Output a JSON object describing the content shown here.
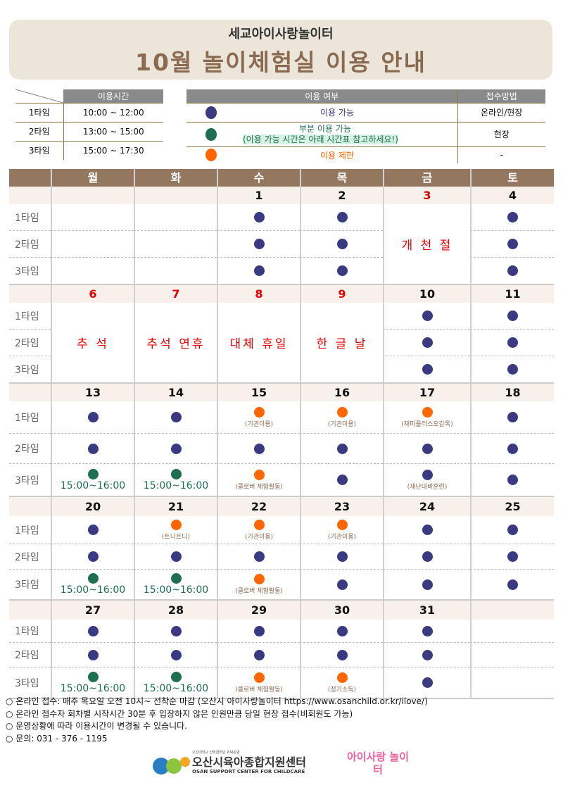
{
  "header": {
    "subtitle": "세교아이사랑놀이터",
    "title": "10월 놀이체험실 이용 안내"
  },
  "time_table": {
    "header": "이용시간",
    "rows": [
      {
        "slot": "1타임",
        "time": "10:00 ~ 12:00"
      },
      {
        "slot": "2타임",
        "time": "13:00 ~ 15:00"
      },
      {
        "slot": "3타임",
        "time": "15:00 ~ 17:30"
      }
    ]
  },
  "legend": {
    "header_status": "이용 여부",
    "header_method": "접수방법",
    "rows": [
      {
        "status": "available",
        "label": "이용 가능",
        "method": "온라인/현장"
      },
      {
        "status": "partial",
        "label": "부분 이용 가능",
        "label2": "(이용 가능 시간은 아래 시간표 참고하세요!)",
        "method": "현장"
      },
      {
        "status": "restricted",
        "label": "이용 제한",
        "method": "-"
      }
    ]
  },
  "colors": {
    "available": "#3a3a82",
    "partial": "#1e6e50",
    "restricted": "#ff6600",
    "holiday": "#e00000",
    "header": "#94775f"
  },
  "calendar": {
    "weekdays": [
      "월",
      "화",
      "수",
      "목",
      "금",
      "토"
    ],
    "slot_labels": [
      "1타임",
      "2타임",
      "3타임"
    ],
    "weeks": [
      {
        "days": [
          {
            "date": ""
          },
          {
            "date": ""
          },
          {
            "date": "1",
            "slots": [
              {
                "s": "available"
              },
              {
                "s": "available"
              },
              {
                "s": "available"
              }
            ]
          },
          {
            "date": "2",
            "slots": [
              {
                "s": "available"
              },
              {
                "s": "available"
              },
              {
                "s": "available"
              }
            ]
          },
          {
            "date": "3",
            "red": true,
            "holiday": "개 천 절"
          },
          {
            "date": "4",
            "slots": [
              {
                "s": "available"
              },
              {
                "s": "available"
              },
              {
                "s": "available"
              }
            ]
          }
        ]
      },
      {
        "days": [
          {
            "date": "6",
            "red": true,
            "holiday": "추   석"
          },
          {
            "date": "7",
            "red": true,
            "holiday": "추석 연휴"
          },
          {
            "date": "8",
            "red": true,
            "holiday": "대체 휴일"
          },
          {
            "date": "9",
            "red": true,
            "holiday": "한 글 날"
          },
          {
            "date": "10",
            "slots": [
              {
                "s": "available"
              },
              {
                "s": "available"
              },
              {
                "s": "available"
              }
            ]
          },
          {
            "date": "11",
            "slots": [
              {
                "s": "available"
              },
              {
                "s": "available"
              },
              {
                "s": "available"
              }
            ]
          }
        ]
      },
      {
        "days": [
          {
            "date": "13",
            "slots": [
              {
                "s": "available"
              },
              {
                "s": "available"
              },
              {
                "s": "partial",
                "time": "15:00~16:00"
              }
            ]
          },
          {
            "date": "14",
            "slots": [
              {
                "s": "available"
              },
              {
                "s": "available"
              },
              {
                "s": "partial",
                "time": "15:00~16:00"
              }
            ]
          },
          {
            "date": "15",
            "slots": [
              {
                "s": "restricted",
                "note": "(기관이용)"
              },
              {
                "s": "available"
              },
              {
                "s": "restricted",
                "note": "(클로버 체험활동)"
              }
            ]
          },
          {
            "date": "16",
            "slots": [
              {
                "s": "restricted",
                "note": "(기관이용)"
              },
              {
                "s": "available"
              },
              {
                "s": "available"
              }
            ]
          },
          {
            "date": "17",
            "slots": [
              {
                "s": "restricted",
                "note": "(재미플러스오감톡)"
              },
              {
                "s": "available"
              },
              {
                "s": "available",
                "note": "(재난대비훈련)"
              }
            ]
          },
          {
            "date": "18",
            "slots": [
              {
                "s": "available"
              },
              {
                "s": "available"
              },
              {
                "s": "available"
              }
            ]
          }
        ]
      },
      {
        "days": [
          {
            "date": "20",
            "slots": [
              {
                "s": "available"
              },
              {
                "s": "available"
              },
              {
                "s": "partial",
                "time": "15:00~16:00"
              }
            ]
          },
          {
            "date": "21",
            "slots": [
              {
                "s": "restricted",
                "note": "(트니트니)"
              },
              {
                "s": "available"
              },
              {
                "s": "partial",
                "time": "15:00~16:00"
              }
            ]
          },
          {
            "date": "22",
            "slots": [
              {
                "s": "restricted",
                "note": "(기관이용)"
              },
              {
                "s": "available"
              },
              {
                "s": "restricted",
                "note": "(클로버 체험활동)"
              }
            ]
          },
          {
            "date": "23",
            "slots": [
              {
                "s": "restricted",
                "note": "(기관이용)"
              },
              {
                "s": "available"
              },
              {
                "s": "available"
              }
            ]
          },
          {
            "date": "24",
            "slots": [
              {
                "s": "available"
              },
              {
                "s": "available"
              },
              {
                "s": "available"
              }
            ]
          },
          {
            "date": "25",
            "slots": [
              {
                "s": "available"
              },
              {
                "s": "available"
              },
              {
                "s": "available"
              }
            ]
          }
        ]
      },
      {
        "days": [
          {
            "date": "27",
            "slots": [
              {
                "s": "available"
              },
              {
                "s": "available"
              },
              {
                "s": "partial",
                "time": "15:00~16:00"
              }
            ]
          },
          {
            "date": "28",
            "slots": [
              {
                "s": "available"
              },
              {
                "s": "available"
              },
              {
                "s": "partial",
                "time": "15:00~16:00"
              }
            ]
          },
          {
            "date": "29",
            "slots": [
              {
                "s": "available"
              },
              {
                "s": "available"
              },
              {
                "s": "restricted",
                "note": "(클로버 체험활동)"
              }
            ]
          },
          {
            "date": "30",
            "slots": [
              {
                "s": "available"
              },
              {
                "s": "available"
              },
              {
                "s": "restricted",
                "note": "(정기소독)"
              }
            ]
          },
          {
            "date": "31",
            "slots": [
              {
                "s": "available"
              },
              {
                "s": "available"
              },
              {
                "s": "available"
              }
            ]
          },
          {
            "date": ""
          }
        ]
      }
    ]
  },
  "notes": [
    "○ 온라인 접수: 매주 목요일 오전 10시~ 선착순 마감 (오산시 아이사랑놀이터 https://www.osanchild.or.kr/ilove/)",
    "○ 온라인 접수자 회차별 시작시간 30분 후 입장하지 않은 인원만큼 당일 현장 접수(비회원도 가능)",
    "○ 운영상황에 따라 이용시간이 변경될 수 있습니다.",
    "○ 문의: 031 - 376 - 1195"
  ],
  "footer": {
    "org_small": "오산대학교 산학협력단 위탁운영",
    "org_name": "오산시육아종합지원센터",
    "org_en": "OSAN SUPPORT CENTER FOR CHILDCARE",
    "logo2": "아이사랑 놀이터"
  }
}
